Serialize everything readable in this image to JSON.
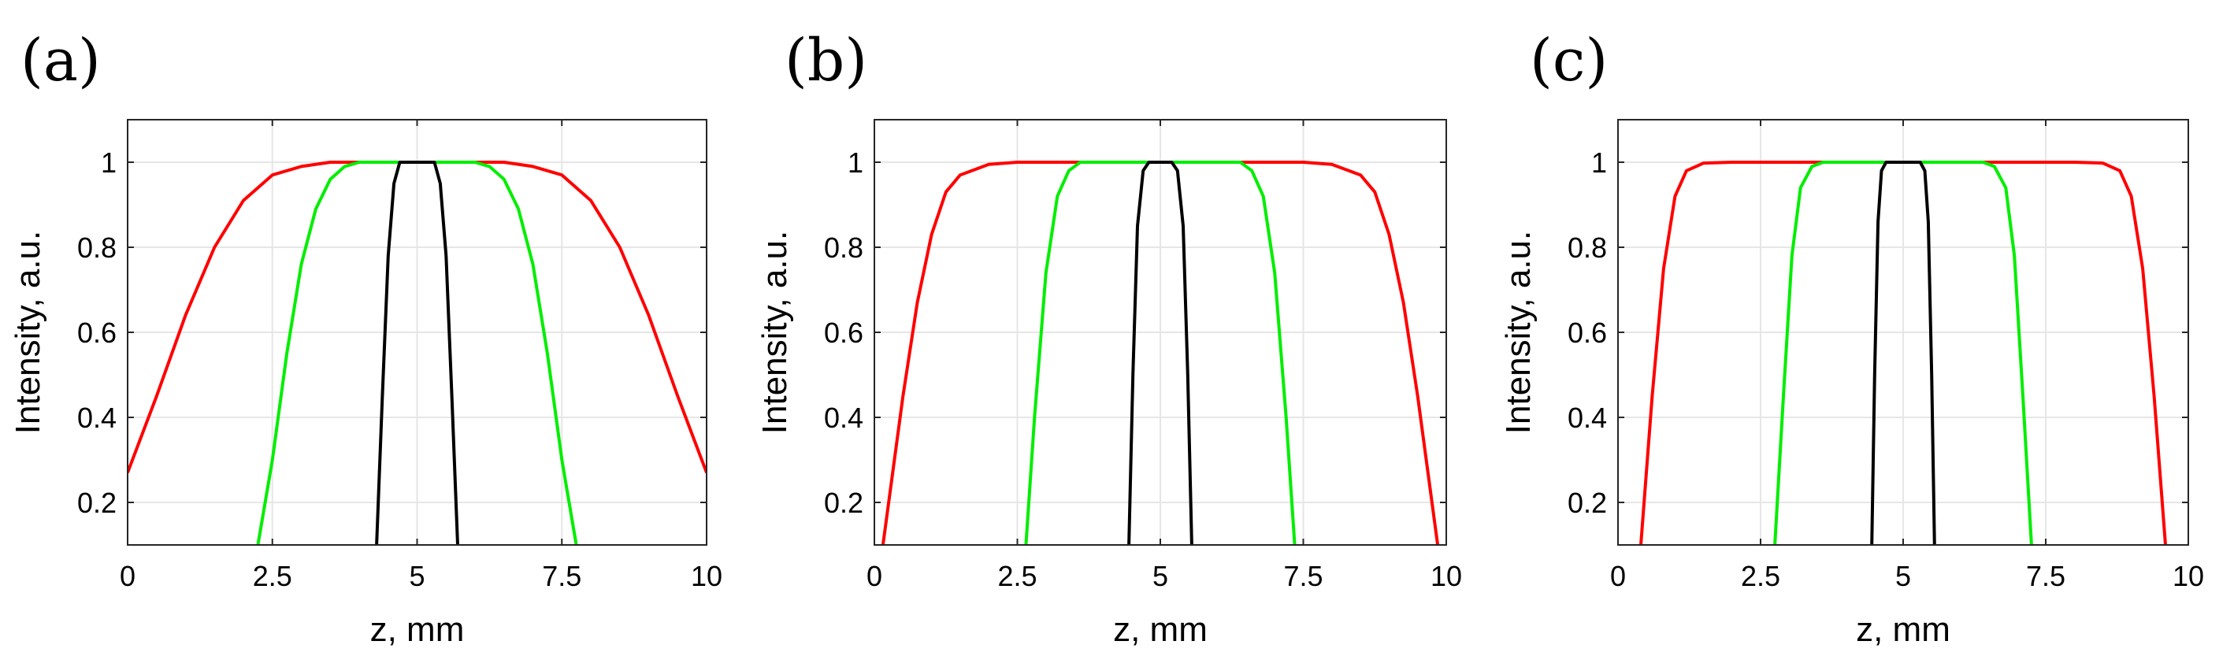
{
  "chart_data": [
    {
      "panel_label": "(a)",
      "type": "line",
      "xlabel": "z, mm",
      "ylabel": "Intensity, a.u.",
      "xlim": [
        0,
        10
      ],
      "ylim": [
        0.1,
        1.1
      ],
      "xticks": [
        "0",
        "2.5",
        "5",
        "7.5",
        "10"
      ],
      "yticks": [
        "0.2",
        "0.4",
        "0.6",
        "0.8",
        "1"
      ],
      "grid": true,
      "series": [
        {
          "color": "#ff0000",
          "x": [
            0,
            0.5,
            1,
            1.5,
            2,
            2.5,
            3,
            3.5,
            4,
            4.5,
            5,
            5.5,
            6,
            6.5,
            7,
            7.5,
            8,
            8.5,
            9,
            9.5,
            10
          ],
          "y": [
            0.27,
            0.45,
            0.64,
            0.8,
            0.91,
            0.97,
            0.99,
            1.0,
            1.0,
            1.0,
            1.0,
            1.0,
            1.0,
            1.0,
            0.99,
            0.97,
            0.91,
            0.8,
            0.64,
            0.45,
            0.27
          ]
        },
        {
          "color": "#00ee00",
          "x": [
            2.25,
            2.5,
            2.75,
            3,
            3.25,
            3.5,
            3.75,
            4,
            4.5,
            5,
            5.5,
            6,
            6.25,
            6.5,
            6.75,
            7,
            7.25,
            7.5,
            7.75
          ],
          "y": [
            0.1,
            0.3,
            0.55,
            0.76,
            0.89,
            0.96,
            0.99,
            1.0,
            1.0,
            1.0,
            1.0,
            1.0,
            0.99,
            0.96,
            0.89,
            0.76,
            0.55,
            0.3,
            0.1
          ]
        },
        {
          "color": "#000000",
          "x": [
            4.3,
            4.4,
            4.5,
            4.6,
            4.7,
            4.8,
            5,
            5.2,
            5.3,
            5.4,
            5.5,
            5.6,
            5.7
          ],
          "y": [
            0.1,
            0.45,
            0.78,
            0.95,
            1.0,
            1.0,
            1.0,
            1.0,
            1.0,
            0.95,
            0.78,
            0.45,
            0.1
          ]
        }
      ]
    },
    {
      "panel_label": "(b)",
      "type": "line",
      "xlabel": "z, mm",
      "ylabel": "Intensity, a.u.",
      "xlim": [
        0,
        10
      ],
      "ylim": [
        0.1,
        1.1
      ],
      "xticks": [
        "0",
        "2.5",
        "5",
        "7.5",
        "10"
      ],
      "yticks": [
        "0.2",
        "0.4",
        "0.6",
        "0.8",
        "1"
      ],
      "grid": true,
      "series": [
        {
          "color": "#ff0000",
          "x": [
            0.15,
            0.5,
            0.75,
            1,
            1.25,
            1.5,
            2,
            2.5,
            3,
            4,
            5,
            6,
            7,
            7.5,
            8,
            8.5,
            8.75,
            9,
            9.25,
            9.5,
            9.85
          ],
          "y": [
            0.1,
            0.45,
            0.67,
            0.83,
            0.93,
            0.97,
            0.995,
            1.0,
            1.0,
            1.0,
            1.0,
            1.0,
            1.0,
            1.0,
            0.995,
            0.97,
            0.93,
            0.83,
            0.67,
            0.45,
            0.1
          ]
        },
        {
          "color": "#00ee00",
          "x": [
            2.65,
            2.8,
            3,
            3.2,
            3.4,
            3.6,
            4,
            5,
            6,
            6.4,
            6.6,
            6.8,
            7,
            7.2,
            7.35
          ],
          "y": [
            0.1,
            0.4,
            0.74,
            0.92,
            0.98,
            1.0,
            1.0,
            1.0,
            1.0,
            1.0,
            0.98,
            0.92,
            0.74,
            0.4,
            0.1
          ]
        },
        {
          "color": "#000000",
          "x": [
            4.45,
            4.52,
            4.6,
            4.7,
            4.8,
            5,
            5.2,
            5.3,
            5.4,
            5.48,
            5.55
          ],
          "y": [
            0.1,
            0.5,
            0.85,
            0.98,
            1.0,
            1.0,
            1.0,
            0.98,
            0.85,
            0.5,
            0.1
          ]
        }
      ]
    },
    {
      "panel_label": "(c)",
      "type": "line",
      "xlabel": "z, mm",
      "ylabel": "Intensity, a.u.",
      "xlim": [
        0,
        10
      ],
      "ylim": [
        0.1,
        1.1
      ],
      "xticks": [
        "0",
        "2.5",
        "5",
        "7.5",
        "10"
      ],
      "yticks": [
        "0.2",
        "0.4",
        "0.6",
        "0.8",
        "1"
      ],
      "grid": true,
      "series": [
        {
          "color": "#ff0000",
          "x": [
            0.4,
            0.6,
            0.8,
            1,
            1.2,
            1.5,
            2,
            3,
            4,
            5,
            6,
            7,
            8,
            8.5,
            8.8,
            9,
            9.2,
            9.4,
            9.6
          ],
          "y": [
            0.1,
            0.45,
            0.75,
            0.92,
            0.98,
            0.998,
            1.0,
            1.0,
            1.0,
            1.0,
            1.0,
            1.0,
            1.0,
            0.998,
            0.98,
            0.92,
            0.75,
            0.45,
            0.1
          ]
        },
        {
          "color": "#00ee00",
          "x": [
            2.75,
            2.9,
            3.05,
            3.2,
            3.4,
            3.6,
            4,
            5,
            6,
            6.4,
            6.6,
            6.8,
            6.95,
            7.1,
            7.25
          ],
          "y": [
            0.1,
            0.45,
            0.78,
            0.94,
            0.99,
            1.0,
            1.0,
            1.0,
            1.0,
            1.0,
            0.99,
            0.94,
            0.78,
            0.45,
            0.1
          ]
        },
        {
          "color": "#000000",
          "x": [
            4.45,
            4.5,
            4.56,
            4.62,
            4.7,
            5,
            5.3,
            5.38,
            5.44,
            5.5,
            5.55
          ],
          "y": [
            0.1,
            0.5,
            0.86,
            0.98,
            1.0,
            1.0,
            1.0,
            0.98,
            0.86,
            0.5,
            0.1
          ]
        }
      ]
    }
  ]
}
